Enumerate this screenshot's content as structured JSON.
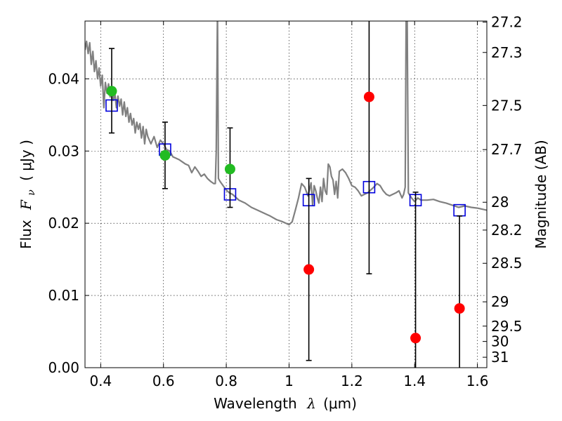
{
  "chart_data": {
    "type": "scatter",
    "xlabel": "Wavelength",
    "xlabel_symbol": "λ",
    "xlabel_unit": "(μm)",
    "ylabel": "Flux",
    "ylabel_symbol": "F",
    "ylabel_sub": "ν",
    "ylabel_unit": "( μJy )",
    "ylabel_right": "Magnitude (AB)",
    "xlim": [
      0.35,
      1.63
    ],
    "ylim": [
      0.0,
      0.048
    ],
    "grid": true,
    "grid_style": "dotted",
    "x_ticks": [
      0.4,
      0.6,
      0.8,
      1.0,
      1.2,
      1.4,
      1.6
    ],
    "x_tick_labels": [
      "0.4",
      "0.6",
      "0.8",
      "1",
      "1.2",
      "1.4",
      "1.6"
    ],
    "y_ticks": [
      0.0,
      0.01,
      0.02,
      0.03,
      0.04
    ],
    "y_tick_labels": [
      "0.00",
      "0.01",
      "0.02",
      "0.03",
      "0.04"
    ],
    "right_ticks": [
      {
        "label": "27.2",
        "mag": 27.2
      },
      {
        "label": "27.3",
        "mag": 27.3
      },
      {
        "label": "27.5",
        "mag": 27.5
      },
      {
        "label": "27.7",
        "mag": 27.7
      },
      {
        "label": "28",
        "mag": 28.0
      },
      {
        "label": "28.2",
        "mag": 28.2
      },
      {
        "label": "28.5",
        "mag": 28.5
      },
      {
        "label": "29",
        "mag": 29.0
      },
      {
        "label": "29.5",
        "mag": 29.5
      },
      {
        "label": "30",
        "mag": 30.0
      },
      {
        "label": "31",
        "mag": 31.0
      }
    ],
    "colors": {
      "spectrum": "#808080",
      "model_squares": "#0000dd",
      "detections": "#22bb22",
      "upper_limits": "#ff0000",
      "errorbars": "#000000",
      "grid": "#000000"
    },
    "spectrum": {
      "name": "",
      "x": [
        0.35,
        0.355,
        0.36,
        0.365,
        0.37,
        0.375,
        0.38,
        0.385,
        0.39,
        0.395,
        0.4,
        0.405,
        0.41,
        0.415,
        0.42,
        0.425,
        0.43,
        0.435,
        0.44,
        0.445,
        0.45,
        0.455,
        0.46,
        0.465,
        0.47,
        0.475,
        0.48,
        0.485,
        0.49,
        0.495,
        0.5,
        0.505,
        0.51,
        0.515,
        0.52,
        0.525,
        0.53,
        0.535,
        0.54,
        0.545,
        0.55,
        0.56,
        0.57,
        0.58,
        0.59,
        0.6,
        0.61,
        0.62,
        0.63,
        0.64,
        0.65,
        0.66,
        0.67,
        0.68,
        0.69,
        0.7,
        0.71,
        0.72,
        0.73,
        0.74,
        0.75,
        0.76,
        0.765,
        0.768,
        0.772,
        0.775,
        0.78,
        0.79,
        0.8,
        0.81,
        0.82,
        0.84,
        0.86,
        0.88,
        0.9,
        0.92,
        0.94,
        0.96,
        0.98,
        1.0,
        1.01,
        1.02,
        1.03,
        1.04,
        1.05,
        1.06,
        1.065,
        1.07,
        1.075,
        1.08,
        1.085,
        1.09,
        1.095,
        1.1,
        1.105,
        1.11,
        1.115,
        1.12,
        1.125,
        1.13,
        1.135,
        1.14,
        1.145,
        1.15,
        1.155,
        1.16,
        1.17,
        1.18,
        1.19,
        1.2,
        1.21,
        1.22,
        1.23,
        1.24,
        1.25,
        1.26,
        1.27,
        1.28,
        1.29,
        1.3,
        1.31,
        1.32,
        1.33,
        1.34,
        1.35,
        1.36,
        1.365,
        1.37,
        1.373,
        1.376,
        1.38,
        1.39,
        1.4,
        1.41,
        1.42,
        1.44,
        1.46,
        1.48,
        1.5,
        1.52,
        1.54,
        1.56,
        1.58,
        1.6,
        1.63
      ],
      "y": [
        0.044,
        0.0452,
        0.0435,
        0.045,
        0.042,
        0.0438,
        0.041,
        0.0425,
        0.04,
        0.0415,
        0.039,
        0.0405,
        0.036,
        0.0395,
        0.038,
        0.0393,
        0.0375,
        0.0388,
        0.037,
        0.038,
        0.036,
        0.0376,
        0.0362,
        0.0372,
        0.035,
        0.0368,
        0.0348,
        0.036,
        0.034,
        0.0352,
        0.0336,
        0.0345,
        0.0325,
        0.034,
        0.033,
        0.0338,
        0.0318,
        0.0334,
        0.031,
        0.033,
        0.032,
        0.031,
        0.032,
        0.0305,
        0.0315,
        0.031,
        0.0302,
        0.03,
        0.0292,
        0.029,
        0.0288,
        0.0285,
        0.0282,
        0.028,
        0.027,
        0.0278,
        0.0272,
        0.0265,
        0.0268,
        0.0262,
        0.0258,
        0.0255,
        0.0255,
        0.03,
        0.05,
        0.0262,
        0.0258,
        0.0252,
        0.0246,
        0.0242,
        0.024,
        0.0232,
        0.0228,
        0.0222,
        0.0218,
        0.0214,
        0.021,
        0.0205,
        0.0202,
        0.0198,
        0.0202,
        0.0218,
        0.0235,
        0.0255,
        0.025,
        0.0238,
        0.0246,
        0.0256,
        0.0225,
        0.0252,
        0.0245,
        0.0235,
        0.0228,
        0.025,
        0.023,
        0.0262,
        0.0245,
        0.024,
        0.0282,
        0.0278,
        0.0265,
        0.026,
        0.024,
        0.0258,
        0.0235,
        0.0272,
        0.0275,
        0.027,
        0.0262,
        0.0252,
        0.025,
        0.0245,
        0.0238,
        0.024,
        0.0242,
        0.0246,
        0.025,
        0.0255,
        0.0252,
        0.0245,
        0.024,
        0.0238,
        0.024,
        0.0242,
        0.0245,
        0.0235,
        0.024,
        0.025,
        0.05,
        0.05,
        0.0242,
        0.0235,
        0.023,
        0.0235,
        0.0232,
        0.0232,
        0.0233,
        0.023,
        0.0228,
        0.0225,
        0.0222,
        0.0224,
        0.0222,
        0.0221,
        0.0218
      ]
    },
    "model_squares": {
      "name": "",
      "x": [
        0.435,
        0.605,
        0.812,
        1.063,
        1.255,
        1.403,
        1.543
      ],
      "y": [
        0.0363,
        0.0302,
        0.024,
        0.0232,
        0.025,
        0.0232,
        0.0218
      ]
    },
    "detections": {
      "name": "",
      "x": [
        0.435,
        0.605,
        0.812
      ],
      "y": [
        0.0383,
        0.0294,
        0.0275
      ],
      "yerr_low": [
        0.0325,
        0.0248,
        0.0222
      ],
      "yerr_high": [
        0.0442,
        0.034,
        0.0332
      ]
    },
    "upper_limits": {
      "name": "",
      "x": [
        1.063,
        1.255,
        1.403,
        1.543
      ],
      "y": [
        0.0136,
        0.0375,
        0.0041,
        0.0082
      ],
      "yerr_low": [
        0.001,
        0.013,
        0.0,
        0.0
      ],
      "yerr_high": [
        0.0262,
        0.048,
        0.0243,
        0.021
      ],
      "open_top": [
        false,
        true,
        false,
        false
      ]
    }
  }
}
